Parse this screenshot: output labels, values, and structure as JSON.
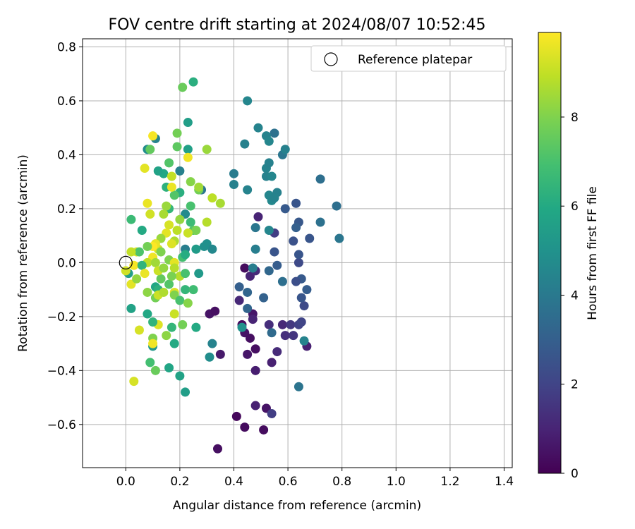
{
  "chart_data": {
    "type": "scatter",
    "title": "FOV centre drift starting at 2024/08/07 10:52:45",
    "xlabel": "Angular distance from reference (arcmin)",
    "ylabel": "Rotation from reference (arcmin)",
    "xlim": [
      -0.16,
      1.43
    ],
    "ylim": [
      -0.76,
      0.83
    ],
    "xticks": [
      0.0,
      0.2,
      0.4,
      0.6,
      0.8,
      1.0,
      1.2,
      1.4
    ],
    "xtick_labels": [
      "0.0",
      "0.2",
      "0.4",
      "0.6",
      "0.8",
      "1.0",
      "1.2",
      "1.4"
    ],
    "yticks": [
      -0.6,
      -0.4,
      -0.2,
      0.0,
      0.2,
      0.4,
      0.6,
      0.8
    ],
    "ytick_labels": [
      "−0.6",
      "−0.4",
      "−0.2",
      "0.0",
      "0.2",
      "0.4",
      "0.6",
      "0.8"
    ],
    "grid": true,
    "legend": {
      "placement": "top-right",
      "entries": [
        "Reference platepar"
      ]
    },
    "reference_point": {
      "x": 0.0,
      "y": 0.0,
      "marker": "open-circle"
    },
    "colorbar": {
      "label": "Hours from first FF file",
      "colormap": "viridis",
      "range": [
        0,
        9.9
      ],
      "ticks": [
        0,
        2,
        4,
        6,
        8
      ],
      "tick_labels": [
        "0",
        "2",
        "4",
        "6",
        "8"
      ]
    },
    "points": [
      {
        "x": 0.41,
        "y": -0.57,
        "c": 0.2
      },
      {
        "x": 0.44,
        "y": -0.61,
        "c": 0.3
      },
      {
        "x": 0.51,
        "y": -0.62,
        "c": 0.3
      },
      {
        "x": 0.34,
        "y": -0.69,
        "c": 0.4
      },
      {
        "x": 0.52,
        "y": -0.54,
        "c": 0.5
      },
      {
        "x": 0.48,
        "y": -0.53,
        "c": 0.9
      },
      {
        "x": 0.54,
        "y": -0.56,
        "c": 1.8
      },
      {
        "x": 0.44,
        "y": -0.02,
        "c": 0.3
      },
      {
        "x": 0.31,
        "y": -0.19,
        "c": 0.5
      },
      {
        "x": 0.33,
        "y": -0.18,
        "c": 0.4
      },
      {
        "x": 0.43,
        "y": -0.23,
        "c": 0.3
      },
      {
        "x": 0.44,
        "y": -0.26,
        "c": 0.5
      },
      {
        "x": 0.46,
        "y": -0.28,
        "c": 0.4
      },
      {
        "x": 0.47,
        "y": -0.19,
        "c": 0.6
      },
      {
        "x": 0.45,
        "y": -0.34,
        "c": 0.6
      },
      {
        "x": 0.48,
        "y": -0.32,
        "c": 0.4
      },
      {
        "x": 0.48,
        "y": -0.4,
        "c": 0.8
      },
      {
        "x": 0.35,
        "y": -0.34,
        "c": 0.7
      },
      {
        "x": 0.46,
        "y": -0.05,
        "c": 1.0
      },
      {
        "x": 0.42,
        "y": -0.14,
        "c": 1.1
      },
      {
        "x": 0.48,
        "y": -0.03,
        "c": 1.2
      },
      {
        "x": 0.47,
        "y": -0.21,
        "c": 1.0
      },
      {
        "x": 0.53,
        "y": -0.23,
        "c": 1.3
      },
      {
        "x": 0.54,
        "y": -0.37,
        "c": 0.9
      },
      {
        "x": 0.56,
        "y": -0.33,
        "c": 1.2
      },
      {
        "x": 0.58,
        "y": -0.23,
        "c": 1.1
      },
      {
        "x": 0.59,
        "y": -0.27,
        "c": 1.3
      },
      {
        "x": 0.61,
        "y": -0.23,
        "c": 1.6
      },
      {
        "x": 0.62,
        "y": -0.27,
        "c": 1.5
      },
      {
        "x": 0.64,
        "y": -0.23,
        "c": 1.9
      },
      {
        "x": 0.65,
        "y": -0.22,
        "c": 2.0
      },
      {
        "x": 0.67,
        "y": -0.31,
        "c": 0.9
      },
      {
        "x": 0.66,
        "y": -0.16,
        "c": 2.2
      },
      {
        "x": 0.65,
        "y": -0.13,
        "c": 2.6
      },
      {
        "x": 0.67,
        "y": -0.1,
        "c": 2.9
      },
      {
        "x": 0.65,
        "y": -0.06,
        "c": 2.8
      },
      {
        "x": 0.63,
        "y": -0.07,
        "c": 2.4
      },
      {
        "x": 0.64,
        "y": 0.0,
        "c": 2.2
      },
      {
        "x": 0.64,
        "y": 0.03,
        "c": 2.6
      },
      {
        "x": 0.62,
        "y": 0.08,
        "c": 2.5
      },
      {
        "x": 0.64,
        "y": 0.15,
        "c": 2.7
      },
      {
        "x": 0.63,
        "y": 0.13,
        "c": 3.0
      },
      {
        "x": 0.68,
        "y": 0.09,
        "c": 2.6
      },
      {
        "x": 0.63,
        "y": 0.22,
        "c": 2.6
      },
      {
        "x": 0.59,
        "y": 0.2,
        "c": 2.8
      },
      {
        "x": 0.55,
        "y": 0.11,
        "c": 1.8
      },
      {
        "x": 0.55,
        "y": 0.04,
        "c": 2.6
      },
      {
        "x": 0.56,
        "y": -0.01,
        "c": 2.9
      },
      {
        "x": 0.53,
        "y": -0.03,
        "c": 3.3
      },
      {
        "x": 0.58,
        "y": -0.07,
        "c": 3.6
      },
      {
        "x": 0.51,
        "y": -0.13,
        "c": 3.1
      },
      {
        "x": 0.45,
        "y": -0.11,
        "c": 3.2
      },
      {
        "x": 0.42,
        "y": -0.09,
        "c": 3.0
      },
      {
        "x": 0.45,
        "y": -0.17,
        "c": 3.2
      },
      {
        "x": 0.47,
        "y": -0.02,
        "c": 4.2
      },
      {
        "x": 0.54,
        "y": -0.26,
        "c": 3.4
      },
      {
        "x": 0.32,
        "y": -0.3,
        "c": 4.4
      },
      {
        "x": 0.31,
        "y": -0.35,
        "c": 4.8
      },
      {
        "x": 0.43,
        "y": -0.24,
        "c": 5.0
      },
      {
        "x": 0.66,
        "y": -0.29,
        "c": 4.4
      },
      {
        "x": 0.64,
        "y": -0.46,
        "c": 3.8
      },
      {
        "x": 0.49,
        "y": 0.17,
        "c": 1.0
      },
      {
        "x": 0.48,
        "y": 0.13,
        "c": 3.9
      },
      {
        "x": 0.48,
        "y": 0.05,
        "c": 4.2
      },
      {
        "x": 0.45,
        "y": 0.27,
        "c": 4.4
      },
      {
        "x": 0.4,
        "y": 0.33,
        "c": 4.1
      },
      {
        "x": 0.4,
        "y": 0.29,
        "c": 4.3
      },
      {
        "x": 0.53,
        "y": 0.12,
        "c": 4.5
      },
      {
        "x": 0.54,
        "y": 0.23,
        "c": 4.6
      },
      {
        "x": 0.53,
        "y": 0.25,
        "c": 4.5
      },
      {
        "x": 0.56,
        "y": 0.26,
        "c": 4.3
      },
      {
        "x": 0.55,
        "y": 0.24,
        "c": 4.4
      },
      {
        "x": 0.52,
        "y": 0.32,
        "c": 4.3
      },
      {
        "x": 0.52,
        "y": 0.35,
        "c": 4.4
      },
      {
        "x": 0.53,
        "y": 0.37,
        "c": 4.3
      },
      {
        "x": 0.54,
        "y": 0.32,
        "c": 4.5
      },
      {
        "x": 0.55,
        "y": 0.48,
        "c": 3.7
      },
      {
        "x": 0.58,
        "y": 0.4,
        "c": 3.9
      },
      {
        "x": 0.59,
        "y": 0.42,
        "c": 4.3
      },
      {
        "x": 0.52,
        "y": 0.47,
        "c": 4.4
      },
      {
        "x": 0.53,
        "y": 0.45,
        "c": 4.5
      },
      {
        "x": 0.49,
        "y": 0.5,
        "c": 4.4
      },
      {
        "x": 0.44,
        "y": 0.44,
        "c": 4.3
      },
      {
        "x": 0.45,
        "y": 0.6,
        "c": 4.5
      },
      {
        "x": 0.72,
        "y": 0.31,
        "c": 3.6
      },
      {
        "x": 0.78,
        "y": 0.21,
        "c": 3.6
      },
      {
        "x": 0.72,
        "y": 0.15,
        "c": 3.7
      },
      {
        "x": 0.79,
        "y": 0.09,
        "c": 3.9
      },
      {
        "x": 0.3,
        "y": 0.07,
        "c": 4.9
      },
      {
        "x": 0.32,
        "y": 0.05,
        "c": 4.6
      },
      {
        "x": 0.22,
        "y": 0.05,
        "c": 4.2
      },
      {
        "x": 0.28,
        "y": 0.27,
        "c": 3.9
      },
      {
        "x": 0.2,
        "y": 0.34,
        "c": 4.3
      },
      {
        "x": 0.11,
        "y": 0.46,
        "c": 4.4
      },
      {
        "x": 0.08,
        "y": 0.42,
        "c": 4.8
      },
      {
        "x": 0.22,
        "y": 0.18,
        "c": 4.7
      },
      {
        "x": 0.23,
        "y": 0.52,
        "c": 5.5
      },
      {
        "x": 0.23,
        "y": 0.42,
        "c": 5.6
      },
      {
        "x": 0.25,
        "y": 0.67,
        "c": 6.2
      },
      {
        "x": 0.21,
        "y": 0.65,
        "c": 7.6
      },
      {
        "x": 0.19,
        "y": 0.48,
        "c": 7.8
      },
      {
        "x": 0.19,
        "y": 0.43,
        "c": 7.4
      },
      {
        "x": 0.09,
        "y": 0.42,
        "c": 7.5
      },
      {
        "x": 0.16,
        "y": 0.37,
        "c": 7.2
      },
      {
        "x": 0.14,
        "y": 0.33,
        "c": 5.9
      },
      {
        "x": 0.12,
        "y": 0.34,
        "c": 5.7
      },
      {
        "x": 0.15,
        "y": 0.28,
        "c": 6.3
      },
      {
        "x": 0.16,
        "y": 0.2,
        "c": 6.5
      },
      {
        "x": 0.2,
        "y": 0.26,
        "c": 6.2
      },
      {
        "x": 0.18,
        "y": 0.25,
        "c": 7.2
      },
      {
        "x": 0.24,
        "y": 0.3,
        "c": 8.1
      },
      {
        "x": 0.27,
        "y": 0.27,
        "c": 7.8
      },
      {
        "x": 0.27,
        "y": 0.28,
        "c": 8.5
      },
      {
        "x": 0.3,
        "y": 0.42,
        "c": 8.4
      },
      {
        "x": 0.32,
        "y": 0.24,
        "c": 8.9
      },
      {
        "x": 0.35,
        "y": 0.22,
        "c": 8.6
      },
      {
        "x": 0.3,
        "y": 0.15,
        "c": 8.8
      },
      {
        "x": 0.24,
        "y": 0.21,
        "c": 7.0
      },
      {
        "x": 0.24,
        "y": 0.15,
        "c": 6.7
      },
      {
        "x": 0.25,
        "y": 0.12,
        "c": 7.2
      },
      {
        "x": 0.26,
        "y": 0.12,
        "c": 7.9
      },
      {
        "x": 0.23,
        "y": 0.11,
        "c": 9.1
      },
      {
        "x": 0.2,
        "y": 0.16,
        "c": 8.3
      },
      {
        "x": 0.18,
        "y": 0.08,
        "c": 8.7
      },
      {
        "x": 0.19,
        "y": 0.12,
        "c": 8.9
      },
      {
        "x": 0.16,
        "y": 0.14,
        "c": 9.3
      },
      {
        "x": 0.15,
        "y": 0.11,
        "c": 9.5
      },
      {
        "x": 0.13,
        "y": 0.09,
        "c": 8.4
      },
      {
        "x": 0.12,
        "y": 0.05,
        "c": 9.2
      },
      {
        "x": 0.11,
        "y": 0.07,
        "c": 9.6
      },
      {
        "x": 0.1,
        "y": 0.06,
        "c": 9.9
      },
      {
        "x": 0.1,
        "y": 0.02,
        "c": 9.7
      },
      {
        "x": 0.08,
        "y": 0.0,
        "c": 8.9
      },
      {
        "x": 0.08,
        "y": 0.06,
        "c": 7.8
      },
      {
        "x": 0.06,
        "y": 0.12,
        "c": 6.0
      },
      {
        "x": 0.02,
        "y": 0.16,
        "c": 6.7
      },
      {
        "x": 0.04,
        "y": 0.04,
        "c": 9.4
      },
      {
        "x": 0.03,
        "y": -0.01,
        "c": 9.8
      },
      {
        "x": 0.01,
        "y": -0.04,
        "c": 5.5
      },
      {
        "x": 0.02,
        "y": -0.08,
        "c": 9.5
      },
      {
        "x": 0.04,
        "y": -0.06,
        "c": 8.3
      },
      {
        "x": 0.06,
        "y": -0.01,
        "c": 6.4
      },
      {
        "x": 0.07,
        "y": -0.04,
        "c": 9.6
      },
      {
        "x": 0.08,
        "y": -0.11,
        "c": 8.2
      },
      {
        "x": 0.11,
        "y": -0.09,
        "c": 5.9
      },
      {
        "x": 0.12,
        "y": -0.1,
        "c": 6.3
      },
      {
        "x": 0.13,
        "y": -0.06,
        "c": 7.5
      },
      {
        "x": 0.11,
        "y": -0.13,
        "c": 7.8
      },
      {
        "x": 0.12,
        "y": -0.12,
        "c": 9.1
      },
      {
        "x": 0.14,
        "y": -0.11,
        "c": 8.7
      },
      {
        "x": 0.16,
        "y": -0.08,
        "c": 7.2
      },
      {
        "x": 0.18,
        "y": -0.11,
        "c": 9.4
      },
      {
        "x": 0.18,
        "y": -0.12,
        "c": 8.0
      },
      {
        "x": 0.2,
        "y": -0.05,
        "c": 8.8
      },
      {
        "x": 0.17,
        "y": -0.05,
        "c": 7.9
      },
      {
        "x": 0.22,
        "y": -0.04,
        "c": 7.0
      },
      {
        "x": 0.22,
        "y": -0.1,
        "c": 6.5
      },
      {
        "x": 0.25,
        "y": -0.1,
        "c": 6.8
      },
      {
        "x": 0.2,
        "y": -0.14,
        "c": 7.0
      },
      {
        "x": 0.23,
        "y": -0.15,
        "c": 8.1
      },
      {
        "x": 0.27,
        "y": -0.04,
        "c": 5.3
      },
      {
        "x": 0.26,
        "y": -0.24,
        "c": 6.0
      },
      {
        "x": 0.21,
        "y": -0.23,
        "c": 7.8
      },
      {
        "x": 0.18,
        "y": -0.19,
        "c": 9.1
      },
      {
        "x": 0.17,
        "y": -0.24,
        "c": 6.5
      },
      {
        "x": 0.15,
        "y": -0.27,
        "c": 8.2
      },
      {
        "x": 0.12,
        "y": -0.23,
        "c": 9.4
      },
      {
        "x": 0.1,
        "y": -0.22,
        "c": 6.4
      },
      {
        "x": 0.08,
        "y": -0.19,
        "c": 5.9
      },
      {
        "x": 0.05,
        "y": -0.25,
        "c": 9.3
      },
      {
        "x": 0.02,
        "y": -0.17,
        "c": 5.7
      },
      {
        "x": 0.1,
        "y": -0.28,
        "c": 8.0
      },
      {
        "x": 0.1,
        "y": -0.31,
        "c": 5.2
      },
      {
        "x": 0.1,
        "y": -0.3,
        "c": 9.7
      },
      {
        "x": 0.18,
        "y": -0.3,
        "c": 6.0
      },
      {
        "x": 0.09,
        "y": -0.37,
        "c": 6.9
      },
      {
        "x": 0.11,
        "y": -0.4,
        "c": 7.6
      },
      {
        "x": 0.16,
        "y": -0.39,
        "c": 5.8
      },
      {
        "x": 0.2,
        "y": -0.42,
        "c": 5.7
      },
      {
        "x": 0.22,
        "y": -0.48,
        "c": 5.5
      },
      {
        "x": 0.03,
        "y": -0.44,
        "c": 9.3
      },
      {
        "x": 0.05,
        "y": 0.04,
        "c": 7.1
      },
      {
        "x": 0.11,
        "y": 0.0,
        "c": 8.5
      },
      {
        "x": 0.13,
        "y": 0.04,
        "c": 8.0
      },
      {
        "x": 0.14,
        "y": 0.18,
        "c": 8.6
      },
      {
        "x": 0.09,
        "y": 0.18,
        "c": 9.2
      },
      {
        "x": 0.08,
        "y": 0.22,
        "c": 9.6
      },
      {
        "x": 0.07,
        "y": 0.35,
        "c": 9.5
      },
      {
        "x": 0.1,
        "y": 0.47,
        "c": 9.8
      },
      {
        "x": 0.23,
        "y": 0.39,
        "c": 9.7
      },
      {
        "x": 0.17,
        "y": 0.28,
        "c": 9.6
      },
      {
        "x": 0.17,
        "y": 0.32,
        "c": 9.0
      },
      {
        "x": 0.15,
        "y": 0.21,
        "c": 8.4
      },
      {
        "x": 0.02,
        "y": 0.04,
        "c": 9.0
      },
      {
        "x": 0.0,
        "y": -0.03,
        "c": 9.2
      },
      {
        "x": 0.12,
        "y": -0.03,
        "c": 9.1
      },
      {
        "x": 0.14,
        "y": -0.02,
        "c": 8.3
      },
      {
        "x": 0.16,
        "y": 0.01,
        "c": 8.0
      },
      {
        "x": 0.18,
        "y": 0.0,
        "c": 9.5
      },
      {
        "x": 0.18,
        "y": -0.02,
        "c": 8.8
      },
      {
        "x": 0.17,
        "y": 0.07,
        "c": 9.4
      },
      {
        "x": 0.21,
        "y": 0.02,
        "c": 6.9
      },
      {
        "x": 0.22,
        "y": 0.03,
        "c": 6.1
      },
      {
        "x": 0.29,
        "y": 0.06,
        "c": 4.9
      },
      {
        "x": 0.26,
        "y": 0.05,
        "c": 5.4
      }
    ]
  }
}
